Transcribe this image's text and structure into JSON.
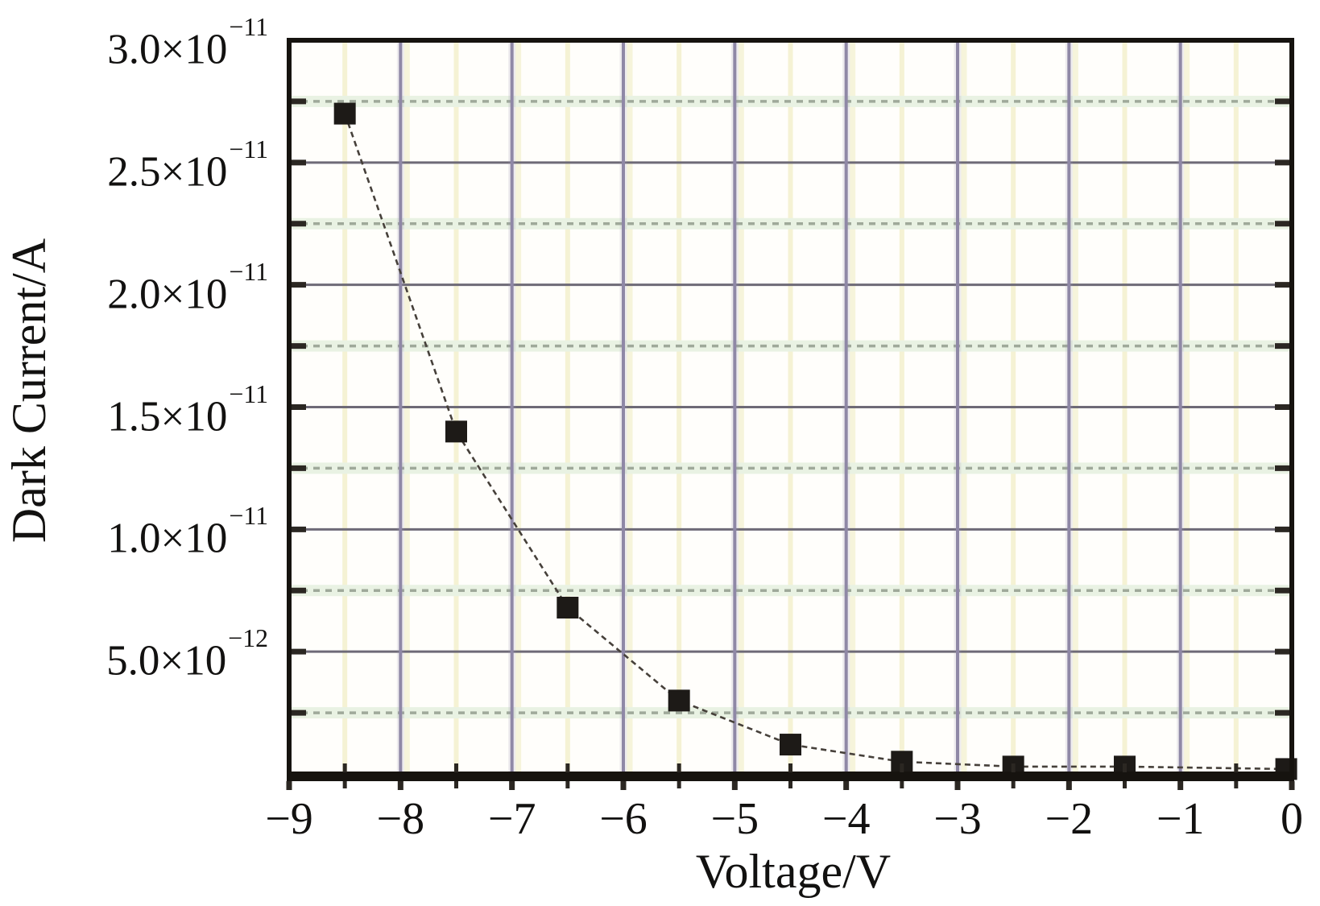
{
  "chart_data": {
    "type": "scatter",
    "title": "",
    "xlabel": "Voltage/V",
    "ylabel": "Dark Current/A",
    "xlim": [
      -9,
      0
    ],
    "ylim": [
      0,
      3e-11
    ],
    "grid": true,
    "legend": "none",
    "series": [
      {
        "name": "dark-current",
        "marker": "filled-square",
        "x": [
          -8.5,
          -7.5,
          -6.5,
          -5.5,
          -4.5,
          -3.5,
          -2.5,
          -1.5,
          -0.05
        ],
        "y": [
          2.7e-11,
          1.4e-11,
          6.8e-12,
          3e-12,
          1.2e-12,
          5e-13,
          3e-13,
          3e-13,
          2e-13
        ]
      }
    ],
    "xticks": [
      {
        "value": -9,
        "label": "−9"
      },
      {
        "value": -8,
        "label": "−8"
      },
      {
        "value": -7,
        "label": "−7"
      },
      {
        "value": -6,
        "label": "−6"
      },
      {
        "value": -5,
        "label": "−5"
      },
      {
        "value": -4,
        "label": "−4"
      },
      {
        "value": -3,
        "label": "−3"
      },
      {
        "value": -2,
        "label": "−2"
      },
      {
        "value": -1,
        "label": "−1"
      },
      {
        "value": 0,
        "label": "0"
      }
    ],
    "yticks": [
      {
        "value": 3e-11,
        "base": "3.0×10",
        "exp": "−11"
      },
      {
        "value": 2.5e-11,
        "base": "2.5×10",
        "exp": "−11"
      },
      {
        "value": 2e-11,
        "base": "2.0×10",
        "exp": "−11"
      },
      {
        "value": 1.5e-11,
        "base": "1.5×10",
        "exp": "−11"
      },
      {
        "value": 1e-11,
        "base": "1.0×10",
        "exp": "−11"
      },
      {
        "value": 5e-12,
        "base": "5.0×10",
        "exp": "−12"
      }
    ],
    "x_minor_values": [
      -8.5,
      -7.5,
      -6.5,
      -5.5,
      -4.5,
      -3.5,
      -2.5,
      -1.5,
      -0.5
    ],
    "y_major_grid_values": [
      5e-12,
      1e-11,
      1.5e-11,
      2e-11,
      2.5e-11
    ],
    "y_minor_grid_values": [
      2.5e-12,
      7.5e-12,
      1.25e-11,
      1.75e-11,
      2.25e-11,
      2.75e-11
    ],
    "colors": {
      "frame": "#16130f",
      "vertical_major_grid": "#8f88a6",
      "vertical_major_halo": "#968fafb0",
      "vertical_minor_grid": "#f5f2d4",
      "horizontal_major_grid": "#6e6a77",
      "horizontal_minor_dash": "#9fa99a",
      "horizontal_minor_band": "#e9f2e3",
      "marker": "#1d1a17",
      "data_line": "#46403a",
      "tick": "#2b2722",
      "plot_background": "#fffefb"
    }
  }
}
